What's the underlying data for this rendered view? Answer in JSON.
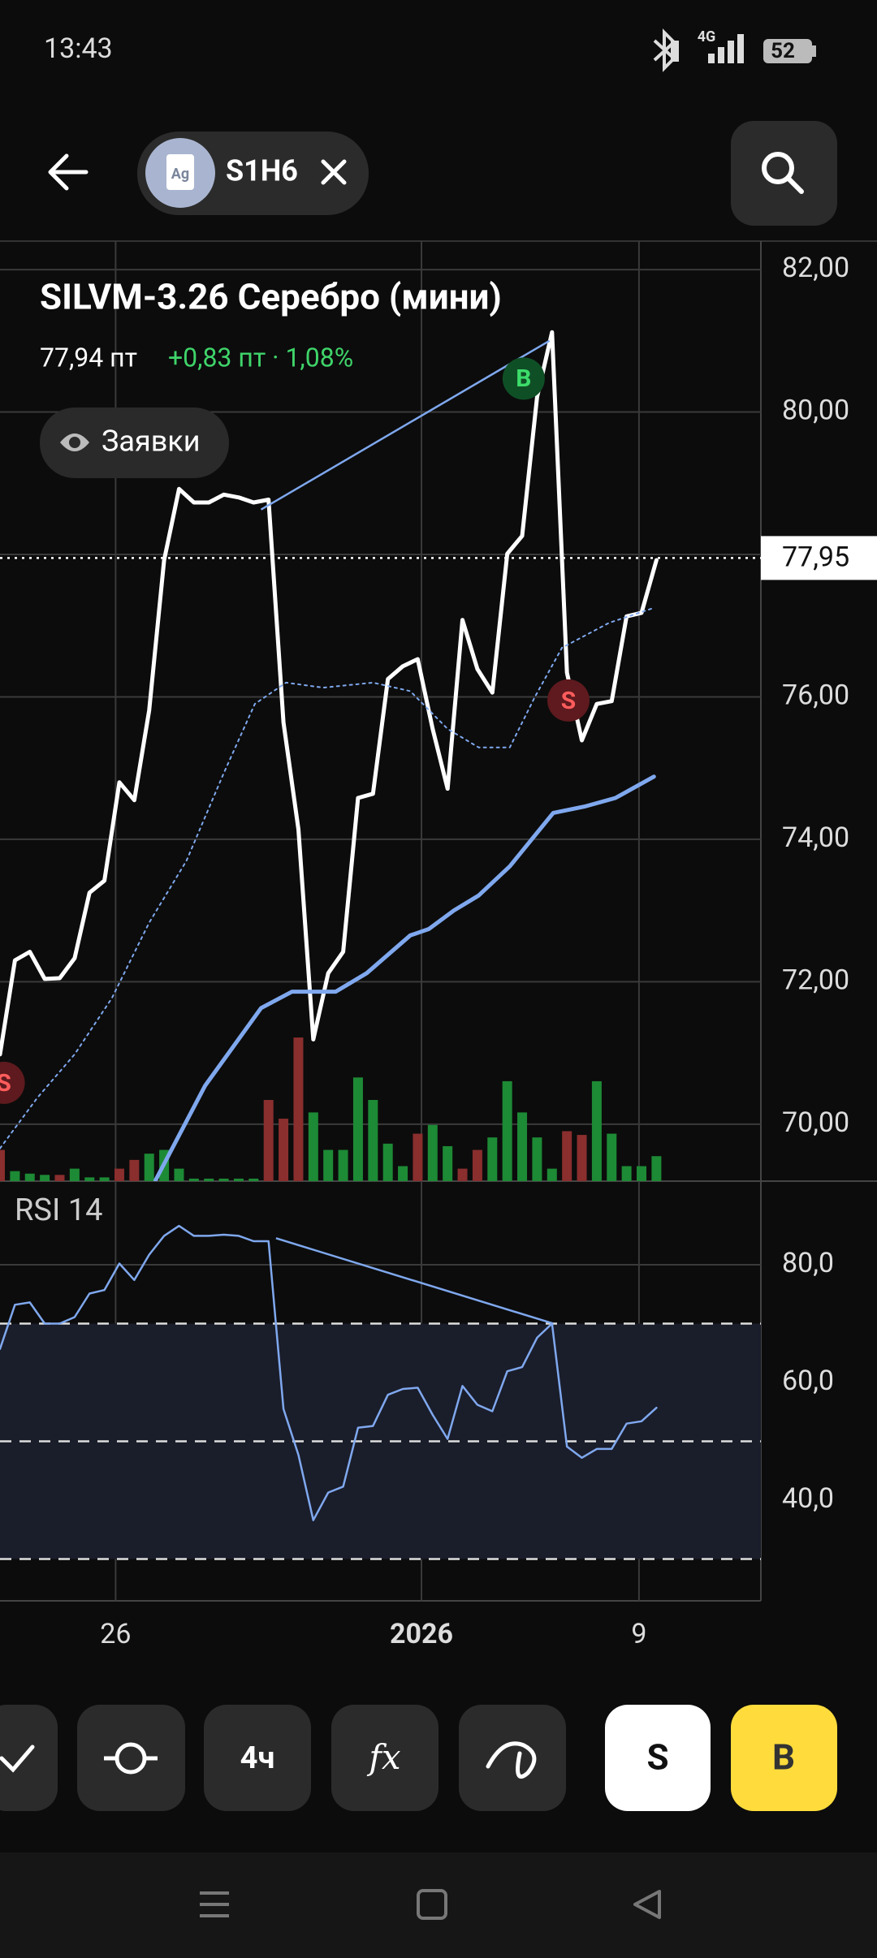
{
  "status_bar": {
    "time": "13:43",
    "network": "4G",
    "battery": "52"
  },
  "header": {
    "icon_text": "Ag",
    "ticker": "S1H6"
  },
  "toolbar": {
    "interval": "4ч",
    "indicators": "fx",
    "sell": "S",
    "buy": "B"
  },
  "chart_data": [
    {
      "type": "line",
      "title": "SILVM-3.26 Серебро (мини)",
      "last_price": "77,94 пт",
      "change": "+0,83 пт · 1,08%",
      "orders_button": "Заявки",
      "xlim": [
        0,
        51
      ],
      "ylim": [
        69.2,
        82.4
      ],
      "yticks": [
        {
          "value": 70,
          "label": "70,00"
        },
        {
          "value": 72,
          "label": "72,00"
        },
        {
          "value": 74,
          "label": "74,00"
        },
        {
          "value": 76,
          "label": "76,00"
        },
        {
          "value": 78,
          "label": "78,00"
        },
        {
          "value": 80,
          "label": "80,00"
        },
        {
          "value": 82,
          "label": "82,00"
        }
      ],
      "current_price": {
        "value": 77.95,
        "label": "77,95"
      },
      "series": [
        {
          "color": "#ffffff",
          "width": 5,
          "x": [
            0,
            1,
            2,
            3,
            4,
            5,
            6,
            7,
            8,
            9,
            10,
            11,
            12,
            13,
            14,
            15,
            16,
            17,
            18,
            19,
            20,
            21,
            22,
            23,
            24,
            25,
            26,
            27,
            28,
            29,
            30,
            31,
            32,
            33,
            34,
            35,
            36,
            37,
            38,
            39,
            40,
            41,
            42,
            43,
            44
          ],
          "values": [
            70.98,
            72.3,
            72.42,
            72.04,
            72.05,
            72.33,
            73.25,
            73.42,
            74.8,
            74.55,
            75.81,
            77.92,
            78.92,
            78.73,
            78.73,
            78.84,
            78.8,
            78.73,
            78.77,
            75.64,
            74.14,
            71.19,
            72.12,
            72.42,
            74.58,
            74.64,
            76.25,
            76.43,
            76.53,
            75.55,
            74.71,
            77.08,
            76.39,
            76.06,
            78.01,
            78.26,
            80.21,
            81.12,
            76.34,
            75.39,
            75.9,
            75.94,
            77.13,
            77.18,
            77.92
          ]
        },
        {
          "color": "#7fa8ee",
          "width": 5,
          "x": [
            10.42,
            13.75,
            17.5,
            19.58,
            22.5,
            24.58,
            27.5,
            28.75,
            30.42,
            32.08,
            34.17,
            37.08,
            39.17,
            41.25,
            43.83
          ],
          "values": [
            69.21,
            70.54,
            71.63,
            71.86,
            71.86,
            72.12,
            72.65,
            72.74,
            73.0,
            73.21,
            73.62,
            74.37,
            74.46,
            74.58,
            74.88
          ]
        },
        {
          "color": "#7fa8ee",
          "width": 2,
          "dotted": true,
          "x": [
            0,
            2.5,
            5,
            7.5,
            10,
            12.5,
            15,
            17.08,
            19.17,
            21.67,
            25,
            27.5,
            30,
            32.08,
            34.17,
            35.83,
            37.67,
            40.83,
            43.83
          ],
          "values": [
            69.66,
            70.37,
            70.98,
            71.77,
            72.83,
            73.7,
            74.93,
            75.9,
            76.2,
            76.13,
            76.2,
            76.08,
            75.55,
            75.29,
            75.29,
            75.99,
            76.69,
            77.04,
            77.25
          ]
        }
      ],
      "trendline": {
        "color": "#7fa8ee",
        "x": [
          17.5,
          36.83
        ],
        "values": [
          78.63,
          81.0
        ]
      },
      "signals": [
        {
          "label": "S",
          "x": 0.25,
          "value": 70.58,
          "color": "#5e1a1e",
          "text_color": "#ff5c5c"
        },
        {
          "label": "B",
          "x": 35.1,
          "value": 80.47,
          "color": "#0f4f26",
          "text_color": "#3ddc6a"
        },
        {
          "label": "S",
          "x": 38.1,
          "value": 75.95,
          "color": "#5e1a1e",
          "text_color": "#ff5c5c"
        }
      ],
      "volume": {
        "vlim": [
          0,
          130
        ],
        "values": [
          25,
          8,
          6,
          5,
          5,
          10,
          3,
          3,
          10,
          17,
          22,
          25,
          10,
          2,
          2,
          2,
          2,
          2,
          65,
          50,
          115,
          55,
          25,
          25,
          83,
          65,
          30,
          12,
          38,
          45,
          28,
          10,
          25,
          35,
          80,
          55,
          35,
          10,
          40,
          37,
          80,
          38,
          12,
          12,
          20
        ],
        "colors": [
          "#8a2e2e",
          "#1d8a35",
          "#1d8a35",
          "#1d8a35",
          "#8a2e2e",
          "#1d8a35",
          "#1d8a35",
          "#1d8a35",
          "#8a2e2e",
          "#8a2e2e",
          "#1d8a35",
          "#1d8a35",
          "#1d8a35",
          "#1d8a35",
          "#1d8a35",
          "#1d8a35",
          "#1d8a35",
          "#1d8a35",
          "#8a2e2e",
          "#8a2e2e",
          "#8a2e2e",
          "#1d8a35",
          "#1d8a35",
          "#1d8a35",
          "#1d8a35",
          "#1d8a35",
          "#1d8a35",
          "#1d8a35",
          "#8a2e2e",
          "#1d8a35",
          "#1d8a35",
          "#8a2e2e",
          "#8a2e2e",
          "#1d8a35",
          "#1d8a35",
          "#1d8a35",
          "#1d8a35",
          "#1d8a35",
          "#8a2e2e",
          "#8a2e2e",
          "#1d8a35",
          "#1d8a35",
          "#1d8a35",
          "#1d8a35",
          "#1d8a35"
        ]
      }
    },
    {
      "type": "line",
      "title": "RSI 14",
      "xlim": [
        0,
        51
      ],
      "ylim": [
        22.9,
        94.2
      ],
      "yticks": [
        {
          "value": 40,
          "label": "40,0"
        },
        {
          "value": 60,
          "label": "60,0"
        },
        {
          "value": 80,
          "label": "80,0"
        }
      ],
      "levels": [
        30,
        50,
        70
      ],
      "xticks": [
        {
          "value": 7.75,
          "label": "26"
        },
        {
          "value": 28.25,
          "label": "2026",
          "bold": true
        },
        {
          "value": 42.83,
          "label": "9"
        }
      ],
      "series": [
        {
          "color": "#7fa8ee",
          "width": 2.5,
          "x": [
            0,
            1,
            2,
            3,
            4,
            5,
            6,
            7,
            8,
            9,
            10,
            11,
            12,
            13,
            14,
            15,
            16,
            17,
            18,
            19,
            20,
            21,
            22,
            23,
            24,
            25,
            26,
            27,
            28,
            29,
            30,
            31,
            32,
            33,
            34,
            35,
            36,
            37,
            38,
            39,
            40,
            41,
            42,
            43,
            44
          ],
          "values": [
            65.7,
            73.2,
            73.6,
            70.0,
            70.0,
            71.1,
            75.1,
            75.7,
            80.2,
            77.4,
            81.7,
            84.9,
            86.6,
            84.9,
            84.9,
            85.1,
            84.9,
            84.0,
            84.0,
            55.5,
            47.7,
            36.6,
            41.3,
            42.3,
            52.3,
            52.6,
            57.9,
            58.9,
            59.1,
            54.5,
            50.4,
            59.4,
            56.2,
            55.1,
            61.9,
            62.6,
            67.6,
            70.0,
            49.1,
            47.2,
            48.7,
            48.7,
            53.0,
            53.4,
            55.7
          ]
        }
      ],
      "trendline": {
        "color": "#7fa8ee",
        "x": [
          18.5,
          37.08
        ],
        "values": [
          84.5,
          70.0
        ]
      }
    }
  ]
}
